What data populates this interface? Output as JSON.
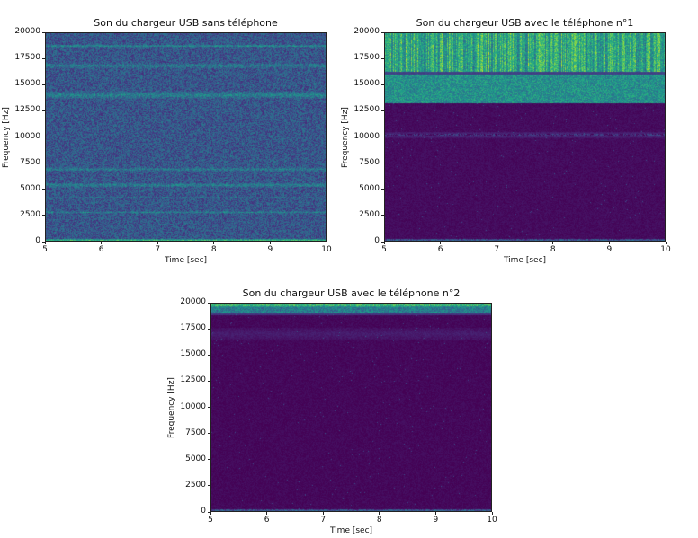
{
  "chart_data": [
    {
      "type": "heatmap",
      "title": "Son du chargeur USB sans téléphone",
      "xlabel": "Time [sec]",
      "ylabel": "Frequency [Hz]",
      "xlim": [
        5,
        10
      ],
      "ylim": [
        0,
        20000
      ],
      "xticks": [
        "5",
        "6",
        "7",
        "8",
        "9",
        "10"
      ],
      "yticks": [
        "0",
        "2500",
        "5000",
        "7500",
        "10000",
        "12500",
        "15000",
        "17500",
        "20000"
      ],
      "colormap": "viridis",
      "base_intensity": 0.27,
      "bands": [
        {
          "freq_hz": 18700,
          "width_hz": 150,
          "intensity": 0.5
        },
        {
          "freq_hz": 16800,
          "width_hz": 400,
          "intensity": 0.42
        },
        {
          "freq_hz": 14000,
          "width_hz": 500,
          "intensity": 0.45
        },
        {
          "freq_hz": 6900,
          "width_hz": 300,
          "intensity": 0.42
        },
        {
          "freq_hz": 5400,
          "width_hz": 300,
          "intensity": 0.44
        },
        {
          "freq_hz": 4200,
          "width_hz": 200,
          "intensity": 0.38
        },
        {
          "freq_hz": 2800,
          "width_hz": 150,
          "intensity": 0.45
        },
        {
          "freq_hz": 100,
          "width_hz": 200,
          "intensity": 0.7
        }
      ]
    },
    {
      "type": "heatmap",
      "title": "Son du chargeur USB avec le téléphone n°1",
      "xlabel": "Time [sec]",
      "ylabel": "Frequency [Hz]",
      "xlim": [
        5,
        10
      ],
      "ylim": [
        0,
        20000
      ],
      "xticks": [
        "5",
        "6",
        "7",
        "8",
        "9",
        "10"
      ],
      "yticks": [
        "0",
        "2500",
        "5000",
        "7500",
        "10000",
        "12500",
        "15000",
        "17500",
        "20000"
      ],
      "colormap": "viridis",
      "base_intensity": 0.03,
      "regions": [
        {
          "from_hz": 13200,
          "to_hz": 16000,
          "intensity": 0.5
        },
        {
          "from_hz": 16200,
          "to_hz": 20000,
          "intensity": 0.6
        }
      ],
      "bands": [
        {
          "freq_hz": 10200,
          "width_hz": 300,
          "intensity": 0.12
        },
        {
          "freq_hz": 100,
          "width_hz": 200,
          "intensity": 0.3
        }
      ]
    },
    {
      "type": "heatmap",
      "title": "Son du chargeur USB avec le téléphone n°2",
      "xlabel": "Time [sec]",
      "ylabel": "Frequency [Hz]",
      "xlim": [
        5,
        10
      ],
      "ylim": [
        0,
        20000
      ],
      "xticks": [
        "5",
        "6",
        "7",
        "8",
        "9",
        "10"
      ],
      "yticks": [
        "0",
        "2500",
        "5000",
        "7500",
        "10000",
        "12500",
        "15000",
        "17500",
        "20000"
      ],
      "colormap": "viridis",
      "base_intensity": 0.02,
      "regions": [
        {
          "from_hz": 19000,
          "to_hz": 20000,
          "intensity": 0.42
        }
      ],
      "bands": [
        {
          "freq_hz": 19750,
          "width_hz": 200,
          "intensity": 0.75
        },
        {
          "freq_hz": 17000,
          "width_hz": 600,
          "intensity": 0.08
        },
        {
          "freq_hz": 100,
          "width_hz": 200,
          "intensity": 0.3
        }
      ]
    }
  ]
}
